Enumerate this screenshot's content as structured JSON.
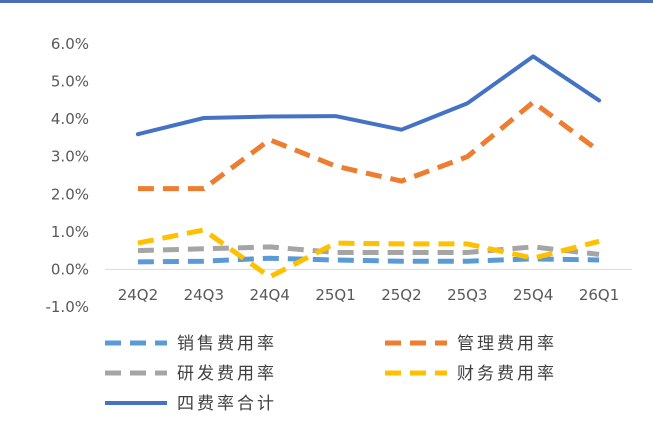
{
  "chart_data": {
    "type": "line",
    "categories": [
      "24Q2",
      "24Q3",
      "24Q4",
      "25Q1",
      "25Q2",
      "25Q3",
      "25Q4",
      "26Q1"
    ],
    "ylim": [
      -1.0,
      6.0
    ],
    "y_ticks": [
      "-1.0%",
      "0.0%",
      "1.0%",
      "2.0%",
      "3.0%",
      "4.0%",
      "5.0%",
      "6.0%"
    ],
    "y_tick_values": [
      -1.0,
      0.0,
      1.0,
      2.0,
      3.0,
      4.0,
      5.0,
      6.0
    ],
    "grid": false,
    "legend_position": "bottom",
    "series": [
      {
        "name": "销售费用率",
        "color": "#5b9bd5",
        "dash": true,
        "width": 5,
        "values": [
          0.2,
          0.22,
          0.3,
          0.25,
          0.22,
          0.22,
          0.28,
          0.25
        ]
      },
      {
        "name": "管理费用率",
        "color": "#ed7d31",
        "dash": true,
        "width": 5,
        "values": [
          2.15,
          2.15,
          3.45,
          2.75,
          2.35,
          3.0,
          4.45,
          3.15
        ]
      },
      {
        "name": "研发费用率",
        "color": "#a5a5a5",
        "dash": true,
        "width": 5,
        "values": [
          0.5,
          0.55,
          0.6,
          0.45,
          0.45,
          0.45,
          0.6,
          0.4
        ]
      },
      {
        "name": "财务费用率",
        "color": "#ffc000",
        "dash": true,
        "width": 5,
        "values": [
          0.7,
          1.05,
          -0.2,
          0.7,
          0.68,
          0.68,
          0.3,
          0.75
        ]
      },
      {
        "name": "四费率合计",
        "color": "#4472c4",
        "dash": false,
        "width": 4,
        "values": [
          3.6,
          4.03,
          4.07,
          4.08,
          3.72,
          4.42,
          5.67,
          4.5
        ]
      }
    ]
  }
}
